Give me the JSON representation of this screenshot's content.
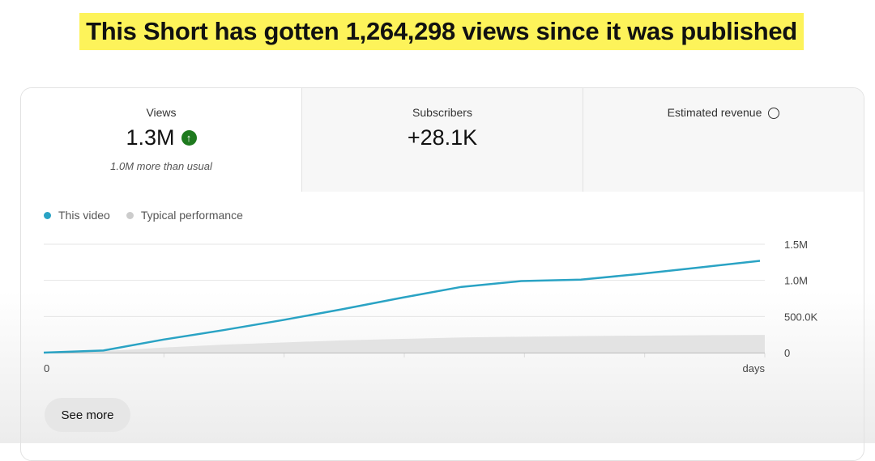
{
  "banner": "This Short has gotten 1,264,298 views since it was published",
  "metrics": [
    {
      "label": "Views",
      "value": "1.3M",
      "trend_icon": "arrow-up-circle",
      "trend_color": "#1e7a1e",
      "note": "1.0M more than usual"
    },
    {
      "label": "Subscribers",
      "value": "+28.1K"
    },
    {
      "label": "Estimated revenue",
      "icon": "clock-icon"
    }
  ],
  "see_more": "See more",
  "chart_data": {
    "type": "line",
    "legend": [
      {
        "name": "This video",
        "color": "#2aa3c4"
      },
      {
        "name": "Typical performance",
        "color": "#cccccc"
      }
    ],
    "x_tick_labels": [
      "0",
      "days"
    ],
    "y_tick_labels": [
      "0",
      "500.0K",
      "1.0M",
      "1.5M"
    ],
    "ylim": [
      0,
      1500000
    ],
    "grid": true,
    "legend_placement": "top-left",
    "series": [
      {
        "name": "This video",
        "values": [
          0,
          30000,
          180000,
          310000,
          450000,
          600000,
          760000,
          910000,
          990000,
          1010000,
          1090000,
          1180000,
          1270000
        ]
      },
      {
        "name": "Typical performance",
        "type": "area",
        "values": [
          0,
          20000,
          70000,
          110000,
          140000,
          170000,
          190000,
          210000,
          220000,
          230000,
          235000,
          240000,
          245000
        ]
      }
    ]
  }
}
